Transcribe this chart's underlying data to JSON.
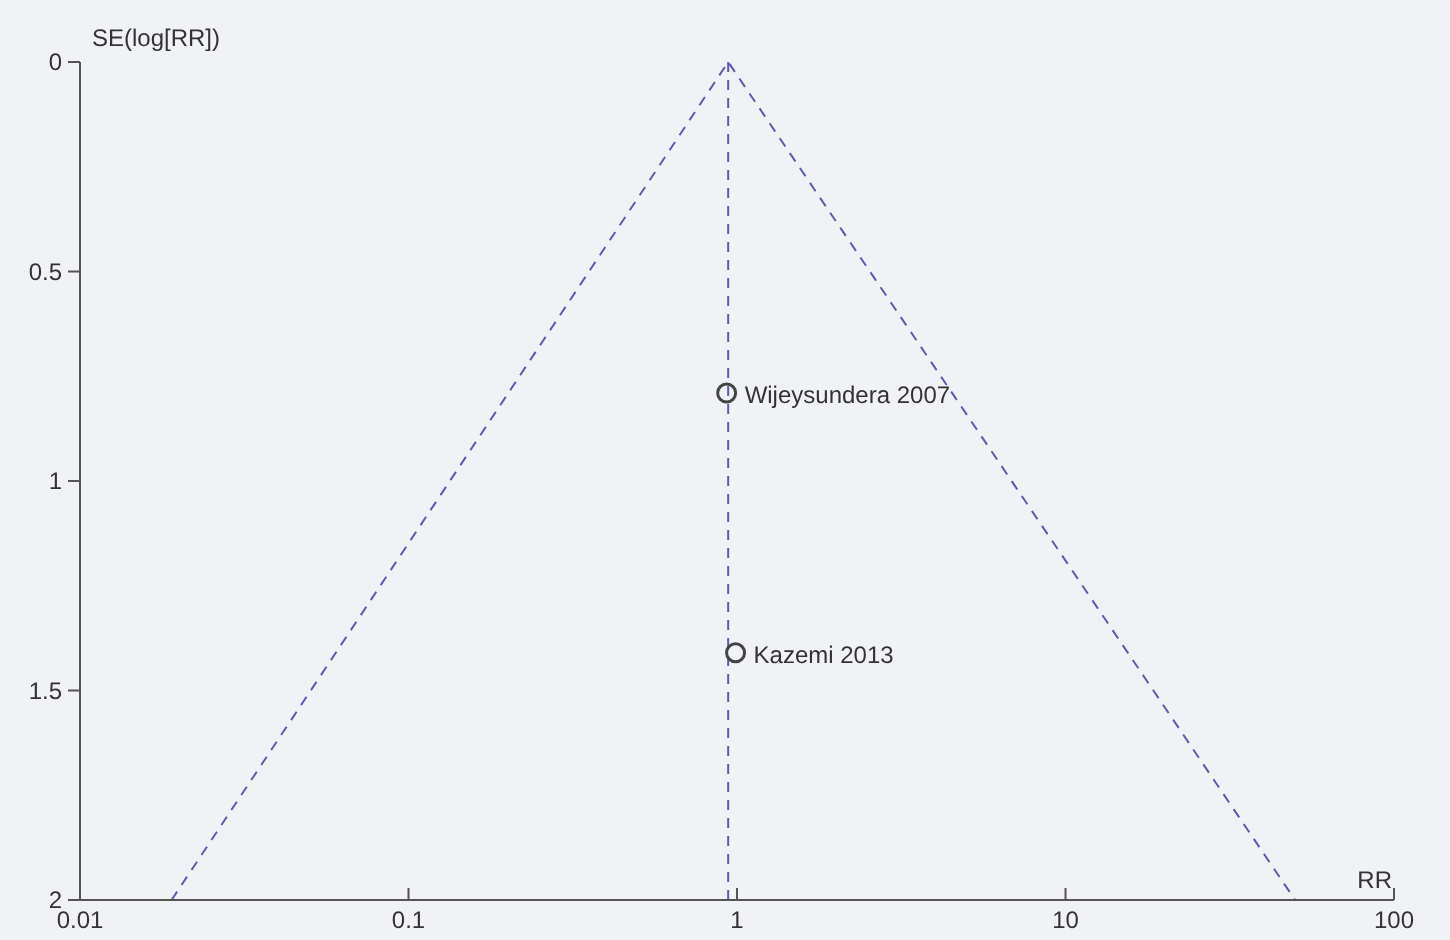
{
  "chart_data": {
    "type": "scatter",
    "xlabel": "RR",
    "ylabel": "SE(log[RR])",
    "log": "x",
    "xlim": [
      0.01,
      100
    ],
    "ylim": [
      2,
      0
    ],
    "xticks": [
      0.01,
      0.1,
      1,
      10,
      100
    ],
    "yticks": [
      0,
      0.5,
      1,
      1.5,
      2
    ],
    "grid": false,
    "series": [
      {
        "color": "#444444",
        "marker": "circle",
        "x": [
          0.93,
          0.99
        ],
        "values": [
          0.79,
          1.41
        ]
      },
      {
        "type": "line",
        "color": "#5a5ab4",
        "line_style": "dashed",
        "x": [
          0.019,
          0.94,
          50
        ],
        "values": [
          2,
          0,
          2
        ]
      }
    ],
    "ref_lines": [
      {
        "axis": "x",
        "value": 0.94,
        "color": "#5a5ab4",
        "line_style": "dashed"
      }
    ],
    "annotations": [
      {
        "text": "Wijeysundera 2007",
        "x": 0.93,
        "y": 0.79
      },
      {
        "text": "Kazemi 2013",
        "x": 0.99,
        "y": 1.41
      }
    ]
  }
}
